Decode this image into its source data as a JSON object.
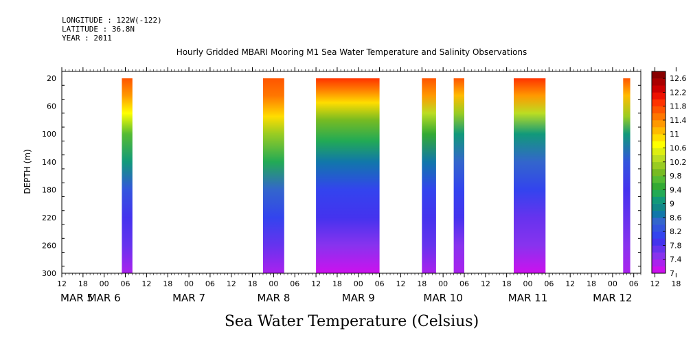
{
  "header": {
    "longitude": "LONGITUDE : 122W(-122)",
    "latitude": "LATITUDE : 36.8N",
    "year": "YEAR : 2011"
  },
  "chart_data": {
    "type": "heatmap",
    "title": "Hourly Gridded MBARI Mooring M1 Sea Water Temperature and Salinity Observations",
    "xlabel": "",
    "ylabel": "DEPTH (m)",
    "variable_label": "Sea Water Temperature (Celsius)",
    "y_ticks": [
      20,
      60,
      100,
      140,
      180,
      220,
      260,
      300
    ],
    "ylim": [
      10,
      300
    ],
    "y_inverted": true,
    "x_hour_ticks": [
      "12",
      "18",
      "00",
      "06",
      "12",
      "18",
      "00",
      "06",
      "12",
      "18",
      "00",
      "06",
      "12",
      "18",
      "00",
      "06",
      "12",
      "18",
      "00",
      "06",
      "12",
      "18",
      "00",
      "06",
      "12",
      "18",
      "00",
      "06",
      "12",
      "18",
      "00",
      "06"
    ],
    "x_hour_start": "2011-03-05T12:00",
    "x_range": [
      "2011-03-05T12:00",
      "2011-03-12T08:00"
    ],
    "date_labels": [
      "MAR   5",
      "MAR   6",
      "MAR   7",
      "MAR   8",
      "MAR   9",
      "MAR  10",
      "MAR  11",
      "MAR  12"
    ],
    "date_label_hours": [
      "2011-03-05T00:00",
      "2011-03-06T00:00",
      "2011-03-07T00:00",
      "2011-03-08T00:00",
      "2011-03-09T00:00",
      "2011-03-10T00:00",
      "2011-03-11T00:00",
      "2011-03-12T00:00"
    ],
    "data_blocks": [
      {
        "start": "2011-03-06T05:00",
        "end": "2011-03-06T08:00",
        "profile": [
          [
            20,
            11.7
          ],
          [
            45,
            11.3
          ],
          [
            70,
            10.6
          ],
          [
            100,
            9.6
          ],
          [
            140,
            9.0
          ],
          [
            180,
            8.3
          ],
          [
            220,
            7.9
          ],
          [
            260,
            7.6
          ],
          [
            300,
            7.2
          ]
        ]
      },
      {
        "start": "2011-03-07T21:00",
        "end": "2011-03-08T03:00",
        "profile": [
          [
            20,
            11.7
          ],
          [
            45,
            11.5
          ],
          [
            75,
            10.8
          ],
          [
            100,
            10.0
          ],
          [
            140,
            9.2
          ],
          [
            180,
            8.4
          ],
          [
            220,
            8.0
          ],
          [
            260,
            7.6
          ],
          [
            300,
            7.3
          ]
        ]
      },
      {
        "start": "2011-03-08T12:00",
        "end": "2011-03-09T06:00",
        "profile": [
          [
            20,
            11.9
          ],
          [
            35,
            11.5
          ],
          [
            55,
            10.8
          ],
          [
            80,
            9.8
          ],
          [
            110,
            9.2
          ],
          [
            140,
            8.6
          ],
          [
            180,
            8.1
          ],
          [
            220,
            7.8
          ],
          [
            260,
            7.4
          ],
          [
            300,
            7.1
          ]
        ]
      },
      {
        "start": "2011-03-09T18:00",
        "end": "2011-03-09T22:00",
        "profile": [
          [
            20,
            11.7
          ],
          [
            45,
            11.2
          ],
          [
            70,
            10.3
          ],
          [
            100,
            9.5
          ],
          [
            140,
            8.6
          ],
          [
            180,
            8.1
          ],
          [
            220,
            7.9
          ],
          [
            260,
            7.6
          ],
          [
            300,
            7.3
          ]
        ]
      },
      {
        "start": "2011-03-10T03:00",
        "end": "2011-03-10T06:00",
        "profile": [
          [
            20,
            11.7
          ],
          [
            45,
            11.0
          ],
          [
            70,
            10.0
          ],
          [
            100,
            9.0
          ],
          [
            140,
            8.4
          ],
          [
            180,
            8.0
          ],
          [
            220,
            7.8
          ],
          [
            260,
            7.5
          ],
          [
            300,
            7.3
          ]
        ]
      },
      {
        "start": "2011-03-10T20:00",
        "end": "2011-03-11T05:00",
        "profile": [
          [
            20,
            11.9
          ],
          [
            45,
            11.3
          ],
          [
            70,
            10.2
          ],
          [
            100,
            9.0
          ],
          [
            140,
            8.4
          ],
          [
            180,
            8.0
          ],
          [
            220,
            7.7
          ],
          [
            260,
            7.4
          ],
          [
            300,
            7.1
          ]
        ]
      },
      {
        "start": "2011-03-12T03:00",
        "end": "2011-03-12T05:00",
        "profile": [
          [
            20,
            11.6
          ],
          [
            45,
            11.0
          ],
          [
            75,
            10.0
          ],
          [
            100,
            9.0
          ],
          [
            140,
            8.3
          ],
          [
            180,
            7.9
          ],
          [
            220,
            7.6
          ],
          [
            260,
            7.4
          ],
          [
            300,
            7.2
          ]
        ]
      }
    ],
    "colorbar": {
      "labels": [
        "12.6",
        "12.2",
        "11.8",
        "11.4",
        "11",
        "10.6",
        "10.2",
        "9.8",
        "9.4",
        "9",
        "8.6",
        "8.2",
        "7.8",
        "7.4",
        "7"
      ],
      "levels": [
        7,
        7.2,
        7.4,
        7.6,
        7.8,
        8.0,
        8.2,
        8.4,
        8.6,
        8.8,
        9.0,
        9.2,
        9.4,
        9.6,
        9.8,
        10.0,
        10.2,
        10.4,
        10.6,
        10.8,
        11.0,
        11.2,
        11.4,
        11.6,
        11.8,
        12.0,
        12.2,
        12.4,
        12.6,
        12.8
      ],
      "colors": [
        "#cc11ee",
        "#aa22ee",
        "#8833ee",
        "#6633ee",
        "#4433ee",
        "#3344ee",
        "#3355dd",
        "#3366cc",
        "#1177aa",
        "#118888",
        "#11997a",
        "#22aa55",
        "#33aa33",
        "#55bb33",
        "#77bb22",
        "#99cc22",
        "#bbdd22",
        "#ddee11",
        "#ffff00",
        "#ffdd00",
        "#ffbb00",
        "#ff9900",
        "#ff7700",
        "#ff5500",
        "#ff3300",
        "#ee1100",
        "#cc0000",
        "#aa0000",
        "#880000"
      ]
    }
  }
}
